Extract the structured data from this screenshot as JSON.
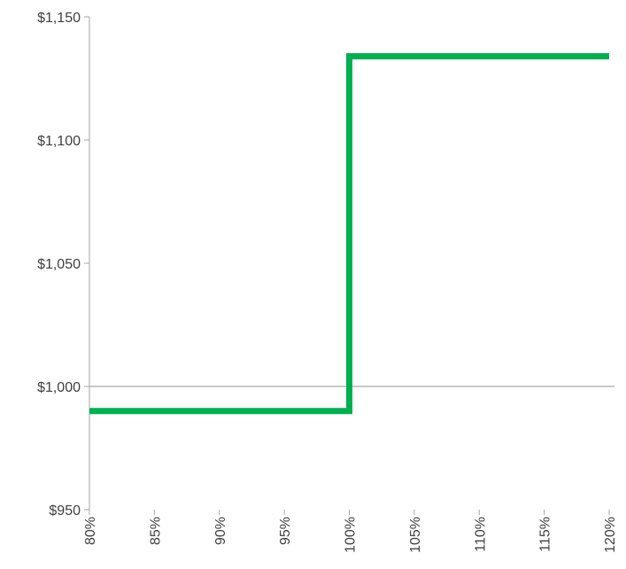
{
  "chart_data": {
    "type": "line",
    "step": true,
    "x_ticks": [
      "80%",
      "85%",
      "90%",
      "95%",
      "100%",
      "105%",
      "110%",
      "115%",
      "120%"
    ],
    "y_ticks": [
      "$950",
      "$1,000",
      "$1,050",
      "$1,100",
      "$1,150"
    ],
    "xlim": [
      80,
      120
    ],
    "ylim": [
      950,
      1150
    ],
    "reference_line": 1000,
    "series": [
      {
        "color": "#00b050",
        "points": [
          {
            "x": 80,
            "y": 990
          },
          {
            "x": 100,
            "y": 990
          },
          {
            "x": 100,
            "y": 1134
          },
          {
            "x": 120,
            "y": 1134
          }
        ]
      }
    ],
    "grid": false
  },
  "colors": {
    "axis": "#a6a6a6",
    "series": "#00b050",
    "text": "#404040"
  }
}
